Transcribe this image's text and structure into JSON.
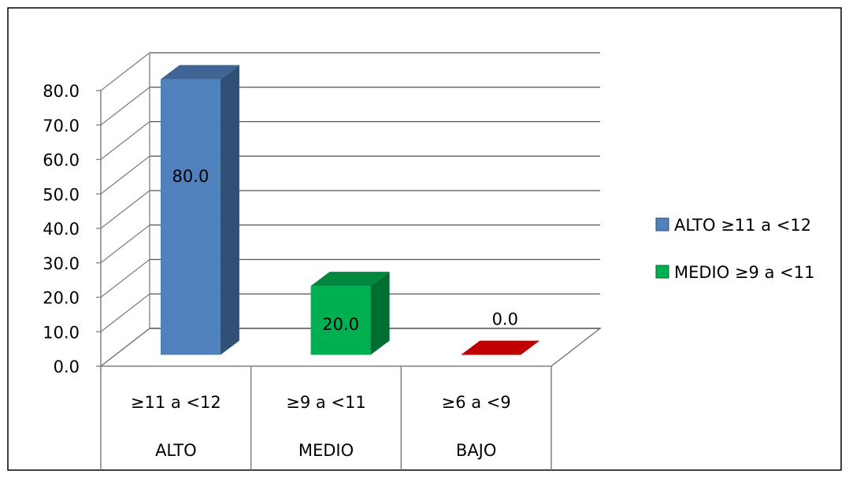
{
  "chart_data": {
    "type": "bar",
    "title": "",
    "xlabel": "",
    "ylabel": "",
    "ylim": [
      0,
      80
    ],
    "ytick_step": 10,
    "ytick_labels": [
      "0.0",
      "10.0",
      "20.0",
      "30.0",
      "40.0",
      "50.0",
      "60.0",
      "70.0",
      "80.0"
    ],
    "grid": true,
    "three_d": true,
    "categories": [
      {
        "range": "≥11 a <12",
        "group": "ALTO"
      },
      {
        "range": "≥9 a <11",
        "group": "MEDIO"
      },
      {
        "range": "≥6 a <9",
        "group": "BAJO"
      }
    ],
    "values": [
      80.0,
      20.0,
      0.0
    ],
    "data_labels": [
      "80.0",
      "20.0",
      "0.0"
    ],
    "bar_colors": [
      "#4F81BD",
      "#00B050",
      "#C00000"
    ],
    "legend_position": "right",
    "legend": [
      {
        "label": "ALTO ≥11 a <12",
        "color": "#4F81BD"
      },
      {
        "label": "MEDIO ≥9 a <11",
        "color": "#00B050"
      }
    ]
  }
}
